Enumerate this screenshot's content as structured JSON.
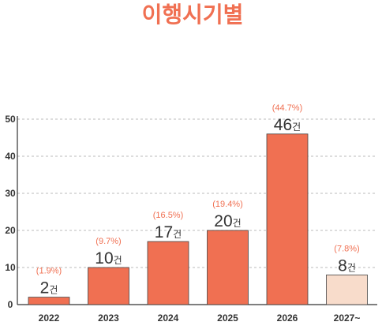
{
  "colors": {
    "accent": "#F07052",
    "bar": "#F07052",
    "bar_light": "#F8DCCB",
    "text": "#333333",
    "grid": "#BBBBBB"
  },
  "chart_data": {
    "type": "bar",
    "title": "이행시기별",
    "categories": [
      "2022",
      "2023",
      "2024",
      "2025",
      "2026",
      "2027~"
    ],
    "values": [
      2,
      10,
      17,
      20,
      46,
      8
    ],
    "value_unit": "건",
    "percent_labels": [
      "(1.9%)",
      "(9.7%)",
      "(16.5%)",
      "(19.4%)",
      "(44.7%)",
      "(7.8%)"
    ],
    "highlighted": [
      true,
      true,
      true,
      true,
      true,
      false
    ],
    "ylim": [
      0,
      50
    ],
    "yticks": [
      0,
      10,
      20,
      30,
      40,
      50
    ],
    "grid": "horizontal dashed",
    "xlabel": "",
    "ylabel": ""
  }
}
